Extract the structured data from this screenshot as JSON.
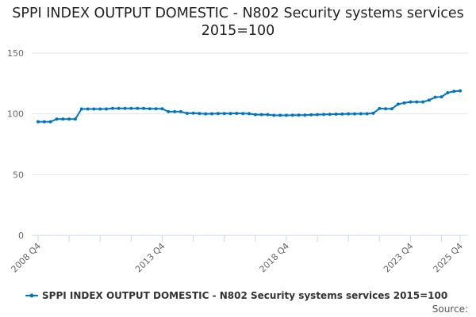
{
  "chart_data": {
    "type": "line",
    "title": "SPPI INDEX OUTPUT DOMESTIC - N802 Security systems services 2015=100",
    "xlabel": "",
    "ylabel": "",
    "ylim": [
      0,
      150
    ],
    "yticks": [
      0,
      50,
      100,
      150
    ],
    "x_start": "2008 Q4",
    "x_end": "2025 Q4",
    "xtick_labels": [
      {
        "index": 0,
        "label": "2008 Q4"
      },
      {
        "index": 20,
        "label": "2013 Q4"
      },
      {
        "index": 40,
        "label": "2018 Q4"
      },
      {
        "index": 60,
        "label": "2023 Q4"
      },
      {
        "index": 68,
        "label": "2025 Q4"
      }
    ],
    "grid": true,
    "legend": "bottom",
    "color": "#0075c2",
    "series": [
      {
        "name": "SPPI INDEX OUTPUT DOMESTIC - N802 Security systems services 2015=100",
        "values": [
          93.5,
          93.5,
          93.5,
          95.7,
          95.7,
          95.7,
          95.7,
          104.0,
          104.0,
          104.0,
          104.0,
          104.0,
          104.5,
          104.5,
          104.5,
          104.5,
          104.5,
          104.5,
          104.2,
          104.2,
          104.2,
          101.8,
          101.8,
          101.8,
          100.4,
          100.6,
          100.3,
          100.0,
          100.1,
          100.3,
          100.3,
          100.3,
          100.4,
          100.3,
          100.2,
          99.4,
          99.4,
          99.4,
          98.8,
          98.8,
          98.8,
          98.9,
          99.0,
          99.0,
          99.2,
          99.4,
          99.5,
          99.6,
          99.8,
          99.9,
          100.0,
          100.0,
          100.1,
          100.1,
          100.5,
          104.4,
          104.2,
          104.2,
          108.0,
          109.0,
          109.8,
          109.8,
          109.8,
          111.3,
          113.7,
          114.0,
          117.4,
          118.5,
          118.9
        ]
      }
    ]
  },
  "source_label": "Source:"
}
